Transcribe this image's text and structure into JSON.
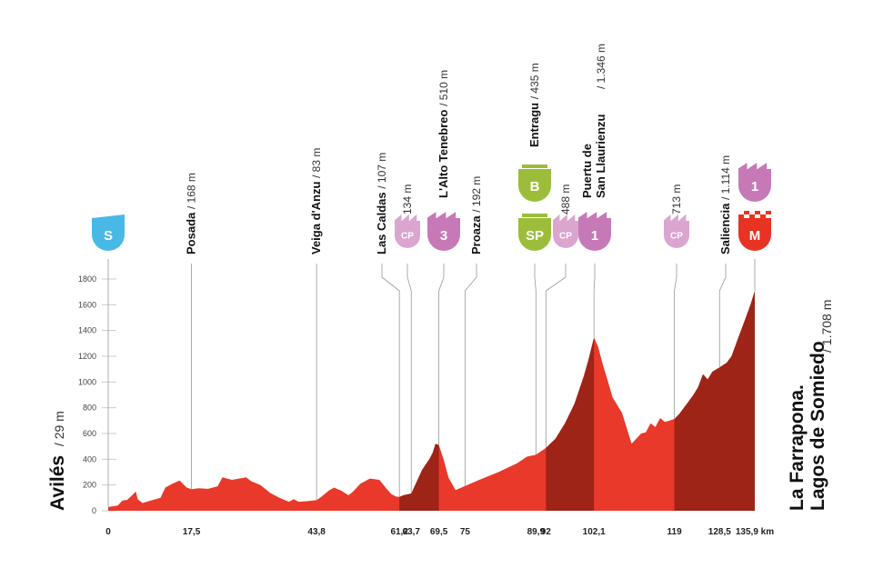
{
  "chart_data": {
    "type": "area",
    "unit": "km",
    "x_ticks": [
      0,
      17.5,
      43.8,
      61.2,
      63.7,
      69.5,
      75,
      89.9,
      92,
      102.1,
      119,
      128.5,
      135.9
    ],
    "x_tick_labels": [
      "0",
      "17,5",
      "43,8",
      "61,2",
      "63,7",
      "69,5",
      "75",
      "89,9",
      "92",
      "102,1",
      "119",
      "128,5",
      "135,9 km"
    ],
    "y_ticks": [
      0,
      200,
      400,
      600,
      800,
      1000,
      1200,
      1400,
      1600,
      1800
    ],
    "ylim": [
      0,
      1800
    ],
    "xlim": [
      0,
      135.9
    ],
    "start": {
      "name": "Avilés",
      "alt": "/ 29 m"
    },
    "finish": {
      "line1": "La Farrapona.",
      "line2": "Lagos de Somiedo",
      "alt": "/ 1.708 m"
    },
    "profile": {
      "x": [
        0,
        2,
        3,
        4,
        5,
        5.8,
        6.2,
        7.2,
        9,
        11,
        12,
        13.5,
        15,
        16.5,
        17.5,
        19,
        21,
        23,
        24,
        26,
        29,
        30,
        32,
        33,
        34,
        35,
        36,
        37,
        38,
        39,
        40,
        42,
        43.8,
        44.5,
        45.5,
        46.5,
        47.5,
        49,
        50.5,
        51.5,
        53,
        55,
        57,
        58.5,
        59.5,
        60.5,
        61.2,
        62,
        63.7,
        64.5,
        66,
        67.5,
        68.2,
        68.8,
        69.5,
        70.5,
        71.5,
        73,
        75,
        78,
        82,
        86,
        88,
        89.9,
        92,
        94,
        96,
        98,
        100,
        101,
        102.1,
        103,
        104,
        105,
        106,
        107,
        108,
        109,
        110,
        111,
        112,
        113,
        114,
        115,
        116,
        117,
        118,
        119,
        120,
        121,
        122,
        123,
        124,
        125,
        126,
        127,
        128.5,
        130,
        131,
        132,
        133,
        134,
        135,
        135.9
      ],
      "y": [
        29,
        40,
        80,
        85,
        120,
        150,
        90,
        60,
        80,
        100,
        180,
        210,
        235,
        180,
        168,
        175,
        170,
        190,
        260,
        240,
        260,
        230,
        200,
        170,
        140,
        120,
        100,
        85,
        70,
        90,
        70,
        75,
        83,
        100,
        130,
        160,
        180,
        155,
        120,
        150,
        210,
        250,
        240,
        170,
        130,
        110,
        107,
        120,
        134,
        200,
        320,
        400,
        450,
        520,
        510,
        400,
        260,
        160,
        192,
        240,
        300,
        370,
        420,
        435,
        488,
        560,
        680,
        830,
        1050,
        1180,
        1346,
        1270,
        1130,
        1010,
        880,
        820,
        760,
        640,
        520,
        560,
        600,
        610,
        680,
        650,
        720,
        690,
        700,
        713,
        750,
        800,
        850,
        900,
        960,
        1060,
        1020,
        1080,
        1114,
        1150,
        1200,
        1300,
        1400,
        1500,
        1600,
        1708
      ]
    },
    "waypoints": [
      {
        "km": 0,
        "name": "",
        "alt": "",
        "badge": "S",
        "badge_text": "S"
      },
      {
        "km": 17.5,
        "name": "Posada",
        "alt": "/ 168 m"
      },
      {
        "km": 43.8,
        "name": "Veiga d'Anzu",
        "alt": "/ 83 m"
      },
      {
        "km": 61.2,
        "name": "Las Caldas",
        "alt": "/ 107 m"
      },
      {
        "km": 63.7,
        "name": "",
        "alt": "134 m",
        "badge": "CP",
        "badge_text": "CP"
      },
      {
        "km": 69.5,
        "name": "L'Alto Tenebreo",
        "alt": "/ 510 m",
        "badge": "KOM",
        "badge_text": "3"
      },
      {
        "km": 75,
        "name": "Proaza",
        "alt": "/ 192 m"
      },
      {
        "km": 89.9,
        "name": "Entragu",
        "alt": "/ 435 m",
        "badge": "SP",
        "badge_text": "SP",
        "badge2": "B",
        "badge2_text": "B"
      },
      {
        "km": 92,
        "name": "",
        "alt": "488 m",
        "badge": "CP",
        "badge_text": "CP"
      },
      {
        "km": 102.1,
        "name": "Puertu de",
        "name2": "San Llaurienzu",
        "alt": "/ 1.346 m",
        "badge": "KOM",
        "badge_text": "1"
      },
      {
        "km": 119,
        "name": "",
        "alt": "713 m",
        "badge": "CP",
        "badge_text": "CP"
      },
      {
        "km": 128.5,
        "name": "Saliencia",
        "alt": "/ 1.114 m"
      },
      {
        "km": 135.9,
        "name": "",
        "alt": "",
        "badge": "M",
        "badge_text": "M",
        "badge2": "KOM",
        "badge2_text": "1"
      }
    ],
    "steep_segments": [
      [
        61.2,
        69.5
      ],
      [
        92,
        102.1
      ],
      [
        119,
        135.9
      ]
    ],
    "colors": {
      "profile": "#e8392a",
      "profile_dark": "#9d2417",
      "start_badge": "#48b8e6",
      "kom_badge": "#c779b7",
      "cp_badge": "#dba5d0",
      "sprint_badge": "#9bbd3a",
      "finish_badge": "#e63322",
      "grid": "#cccccc",
      "leader": "#999999"
    }
  }
}
